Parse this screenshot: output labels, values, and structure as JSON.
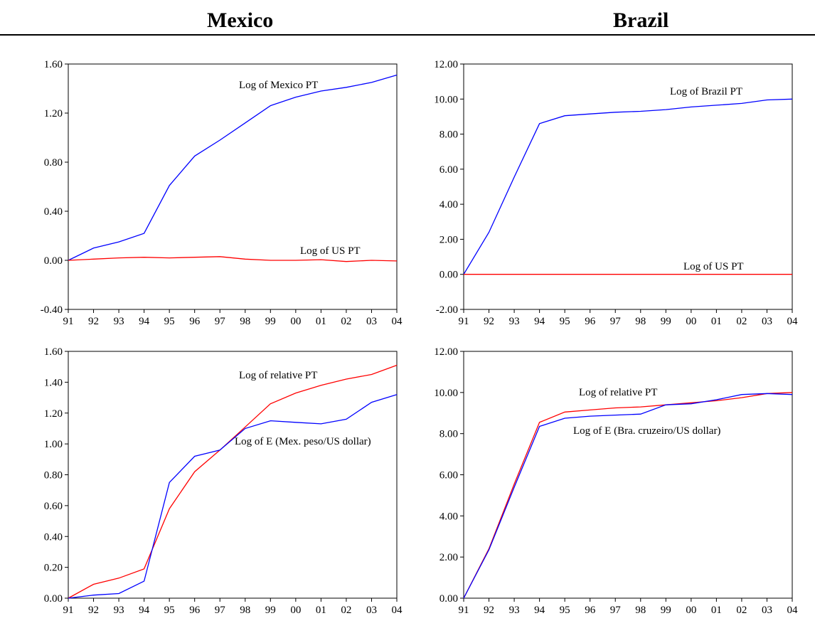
{
  "headers": {
    "left": "Mexico",
    "right": "Brazil"
  },
  "colors": {
    "blue": "#0000ff",
    "red": "#ff0000"
  },
  "chart_data": [
    {
      "type": "line",
      "categories": [
        "91",
        "92",
        "93",
        "94",
        "95",
        "96",
        "97",
        "98",
        "99",
        "00",
        "01",
        "02",
        "03",
        "04"
      ],
      "ylim": [
        -0.4,
        1.6
      ],
      "yticks": [
        "-0.40",
        "0.00",
        "0.40",
        "0.80",
        "1.20",
        "1.60"
      ],
      "grid": false,
      "series": [
        {
          "name": "Log of Mexico PT",
          "color": "#0000ff",
          "values": [
            0.0,
            0.1,
            0.15,
            0.22,
            0.61,
            0.85,
            0.98,
            1.12,
            1.26,
            1.33,
            1.38,
            1.41,
            1.45,
            1.51
          ]
        },
        {
          "name": "Log of US PT",
          "color": "#ff0000",
          "values": [
            0.0,
            0.01,
            0.02,
            0.025,
            0.02,
            0.025,
            0.03,
            0.01,
            0.0,
            0.0,
            0.005,
            -0.01,
            0.0,
            -0.005
          ]
        }
      ]
    },
    {
      "type": "line",
      "categories": [
        "91",
        "92",
        "93",
        "94",
        "95",
        "96",
        "97",
        "98",
        "99",
        "00",
        "01",
        "02",
        "03",
        "04"
      ],
      "ylim": [
        -2,
        12
      ],
      "yticks": [
        "-2.00",
        "0.00",
        "2.00",
        "4.00",
        "6.00",
        "8.00",
        "10.00",
        "12.00"
      ],
      "grid": false,
      "series": [
        {
          "name": "Log of Brazil PT",
          "color": "#0000ff",
          "values": [
            0.0,
            2.4,
            5.55,
            8.6,
            9.05,
            9.15,
            9.25,
            9.3,
            9.4,
            9.55,
            9.65,
            9.75,
            9.95,
            10.0
          ]
        },
        {
          "name": "Log of US PT",
          "color": "#ff0000",
          "values": [
            0.0,
            0.0,
            0.0,
            0.0,
            0.0,
            0.0,
            0.0,
            0.0,
            0.0,
            0.0,
            0.0,
            0.0,
            0.0,
            0.0
          ]
        }
      ]
    },
    {
      "type": "line",
      "categories": [
        "91",
        "92",
        "93",
        "94",
        "95",
        "96",
        "97",
        "98",
        "99",
        "00",
        "01",
        "02",
        "03",
        "04"
      ],
      "ylim": [
        0.0,
        1.6
      ],
      "yticks": [
        "0.00",
        "0.20",
        "0.40",
        "0.60",
        "0.80",
        "1.00",
        "1.20",
        "1.40",
        "1.60"
      ],
      "grid": false,
      "series": [
        {
          "name": "Log of relative PT",
          "color": "#ff0000",
          "values": [
            0.0,
            0.09,
            0.13,
            0.19,
            0.58,
            0.82,
            0.96,
            1.11,
            1.26,
            1.33,
            1.38,
            1.42,
            1.45,
            1.51
          ]
        },
        {
          "name": "Log of E (Mex. peso/US dollar)",
          "color": "#0000ff",
          "values": [
            0.0,
            0.02,
            0.03,
            0.11,
            0.75,
            0.92,
            0.96,
            1.1,
            1.15,
            1.14,
            1.13,
            1.16,
            1.27,
            1.32
          ]
        }
      ]
    },
    {
      "type": "line",
      "categories": [
        "91",
        "92",
        "93",
        "94",
        "95",
        "96",
        "97",
        "98",
        "99",
        "00",
        "01",
        "02",
        "03",
        "04"
      ],
      "ylim": [
        0.0,
        12.0
      ],
      "yticks": [
        "0.00",
        "2.00",
        "4.00",
        "6.00",
        "8.00",
        "10.00",
        "12.00"
      ],
      "grid": false,
      "series": [
        {
          "name": "Log of relative PT",
          "color": "#ff0000",
          "values": [
            0.0,
            2.4,
            5.55,
            8.55,
            9.05,
            9.15,
            9.25,
            9.3,
            9.4,
            9.5,
            9.6,
            9.75,
            9.95,
            10.0
          ]
        },
        {
          "name": "Log of E (Bra. cruzeiro/US dollar)",
          "color": "#0000ff",
          "values": [
            0.0,
            2.35,
            5.4,
            8.35,
            8.75,
            8.85,
            8.9,
            8.95,
            9.4,
            9.45,
            9.65,
            9.9,
            9.95,
            9.9
          ]
        }
      ]
    }
  ]
}
